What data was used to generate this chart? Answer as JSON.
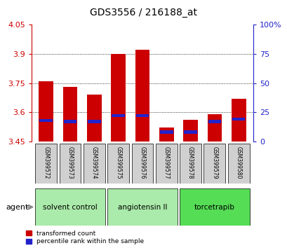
{
  "title": "GDS3556 / 216188_at",
  "samples": [
    "GSM399572",
    "GSM399573",
    "GSM399574",
    "GSM399575",
    "GSM399576",
    "GSM399577",
    "GSM399578",
    "GSM399579",
    "GSM399580"
  ],
  "transformed_counts": [
    3.76,
    3.73,
    3.69,
    3.9,
    3.92,
    3.52,
    3.56,
    3.59,
    3.67
  ],
  "percentile_ranks": [
    18,
    17,
    17,
    22,
    22,
    8,
    8,
    17,
    19
  ],
  "ymin": 3.45,
  "ymax": 4.05,
  "yticks": [
    3.45,
    3.6,
    3.75,
    3.9,
    4.05
  ],
  "ytick_labels": [
    "3.45",
    "3.6",
    "3.75",
    "3.9",
    "4.05"
  ],
  "grid_yticks": [
    3.6,
    3.75,
    3.9
  ],
  "right_yticks": [
    0,
    25,
    50,
    75,
    100
  ],
  "right_ytick_labels": [
    "0",
    "25",
    "50",
    "75",
    "100%"
  ],
  "groups": [
    {
      "label": "solvent control",
      "indices": [
        0,
        1,
        2
      ],
      "color": "#aaeaaa"
    },
    {
      "label": "angiotensin II",
      "indices": [
        3,
        4,
        5
      ],
      "color": "#aaeaaa"
    },
    {
      "label": "torcetrapib",
      "indices": [
        6,
        7,
        8
      ],
      "color": "#55dd55"
    }
  ],
  "bar_color": "#cc0000",
  "blue_color": "#2222cc",
  "bar_width": 0.6,
  "legend_labels": [
    "transformed count",
    "percentile rank within the sample"
  ],
  "agent_label": "agent",
  "tick_color_left": "#cc0000",
  "tick_color_right": "#2222cc",
  "sample_bg_color": "#d0d0d0"
}
